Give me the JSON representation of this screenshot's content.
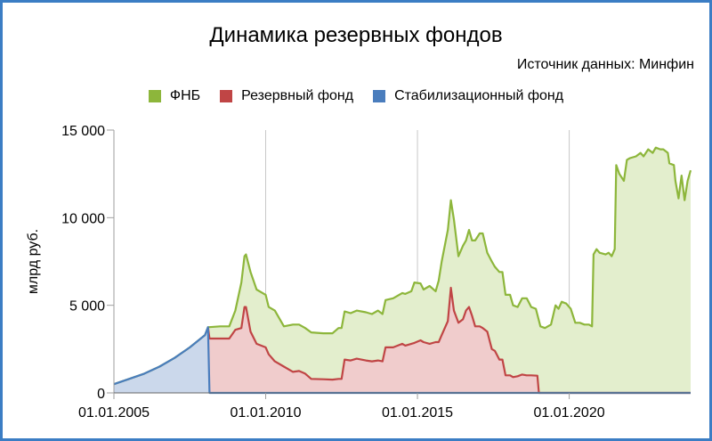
{
  "chart_data": {
    "type": "area",
    "title": "Динамика резервных фондов",
    "subtitle": "Источник данных: Минфин",
    "ylabel": "млрд руб.",
    "xlabel": "",
    "xlim": [
      2005.0,
      2024.0
    ],
    "ylim": [
      0,
      15000
    ],
    "y_ticks": [
      0,
      5000,
      10000,
      15000
    ],
    "y_tick_labels": [
      "0",
      "5 000",
      "10 000",
      "15 000"
    ],
    "x_ticks": [
      2005.0,
      2010.0,
      2015.0,
      2020.0
    ],
    "x_tick_labels": [
      "01.01.2005",
      "01.01.2010",
      "01.01.2015",
      "01.01.2020"
    ],
    "grid": "vertical",
    "legend_position": "top",
    "series": [
      {
        "name": "ФНБ",
        "line_color": "#8db63b",
        "fill_color": "#e3eecd",
        "points": [
          [
            2005.0,
            500
          ],
          [
            2005.5,
            800
          ],
          [
            2006.0,
            1100
          ],
          [
            2006.5,
            1500
          ],
          [
            2007.0,
            2000
          ],
          [
            2007.5,
            2600
          ],
          [
            2008.0,
            3300
          ],
          [
            2008.1,
            3750
          ],
          [
            2008.5,
            3800
          ],
          [
            2008.7,
            3800
          ],
          [
            2008.8,
            3800
          ],
          [
            2009.0,
            4700
          ],
          [
            2009.2,
            6300
          ],
          [
            2009.3,
            7800
          ],
          [
            2009.35,
            7900
          ],
          [
            2009.5,
            6900
          ],
          [
            2009.7,
            5900
          ],
          [
            2010.0,
            5600
          ],
          [
            2010.1,
            4900
          ],
          [
            2010.3,
            4700
          ],
          [
            2010.6,
            3800
          ],
          [
            2010.9,
            3900
          ],
          [
            2011.1,
            3900
          ],
          [
            2011.3,
            3700
          ],
          [
            2011.5,
            3450
          ],
          [
            2011.9,
            3400
          ],
          [
            2012.2,
            3400
          ],
          [
            2012.4,
            3700
          ],
          [
            2012.5,
            3700
          ],
          [
            2012.6,
            4650
          ],
          [
            2012.8,
            4550
          ],
          [
            2013.0,
            4700
          ],
          [
            2013.3,
            4600
          ],
          [
            2013.5,
            4500
          ],
          [
            2013.7,
            4700
          ],
          [
            2013.85,
            4500
          ],
          [
            2013.95,
            5300
          ],
          [
            2014.2,
            5400
          ],
          [
            2014.5,
            5700
          ],
          [
            2014.6,
            5650
          ],
          [
            2014.8,
            5800
          ],
          [
            2014.9,
            6300
          ],
          [
            2015.1,
            6250
          ],
          [
            2015.2,
            5900
          ],
          [
            2015.4,
            6100
          ],
          [
            2015.6,
            5800
          ],
          [
            2015.7,
            6400
          ],
          [
            2015.8,
            7500
          ],
          [
            2016.0,
            9300
          ],
          [
            2016.1,
            11000
          ],
          [
            2016.2,
            9900
          ],
          [
            2016.35,
            7800
          ],
          [
            2016.5,
            8400
          ],
          [
            2016.6,
            8700
          ],
          [
            2016.7,
            9300
          ],
          [
            2016.8,
            8700
          ],
          [
            2016.9,
            8700
          ],
          [
            2017.05,
            9100
          ],
          [
            2017.15,
            9100
          ],
          [
            2017.3,
            8000
          ],
          [
            2017.45,
            7500
          ],
          [
            2017.55,
            7200
          ],
          [
            2017.7,
            6900
          ],
          [
            2017.8,
            6900
          ],
          [
            2017.9,
            5600
          ],
          [
            2018.05,
            5600
          ],
          [
            2018.15,
            5000
          ],
          [
            2018.3,
            4900
          ],
          [
            2018.45,
            5400
          ],
          [
            2018.6,
            5400
          ],
          [
            2018.75,
            4900
          ],
          [
            2018.9,
            4800
          ],
          [
            2019.05,
            3800
          ],
          [
            2019.2,
            3700
          ],
          [
            2019.4,
            3900
          ],
          [
            2019.55,
            5000
          ],
          [
            2019.65,
            4800
          ],
          [
            2019.75,
            5200
          ],
          [
            2019.9,
            5100
          ],
          [
            2020.05,
            4800
          ],
          [
            2020.2,
            4000
          ],
          [
            2020.35,
            4000
          ],
          [
            2020.5,
            3900
          ],
          [
            2020.65,
            3900
          ],
          [
            2020.75,
            3800
          ],
          [
            2020.8,
            7900
          ],
          [
            2020.9,
            8200
          ],
          [
            2021.0,
            8000
          ],
          [
            2021.2,
            7900
          ],
          [
            2021.3,
            8000
          ],
          [
            2021.4,
            7800
          ],
          [
            2021.5,
            8200
          ],
          [
            2021.55,
            13000
          ],
          [
            2021.65,
            12500
          ],
          [
            2021.8,
            12100
          ],
          [
            2021.9,
            13300
          ],
          [
            2022.0,
            13400
          ],
          [
            2022.2,
            13500
          ],
          [
            2022.35,
            13700
          ],
          [
            2022.45,
            13500
          ],
          [
            2022.6,
            13900
          ],
          [
            2022.75,
            13700
          ],
          [
            2022.85,
            14000
          ],
          [
            2023.0,
            13900
          ],
          [
            2023.1,
            13900
          ],
          [
            2023.25,
            13700
          ],
          [
            2023.3,
            13100
          ],
          [
            2023.45,
            13000
          ],
          [
            2023.5,
            12100
          ],
          [
            2023.6,
            11100
          ],
          [
            2023.7,
            12400
          ],
          [
            2023.8,
            11000
          ],
          [
            2023.9,
            12100
          ],
          [
            2024.0,
            12700
          ]
        ]
      },
      {
        "name": "Резервный фонд",
        "line_color": "#c04545",
        "fill_color": "#f0cccc",
        "points": [
          [
            2008.1,
            3750
          ],
          [
            2008.15,
            3100
          ],
          [
            2008.5,
            3100
          ],
          [
            2008.7,
            3100
          ],
          [
            2008.8,
            3100
          ],
          [
            2009.0,
            3600
          ],
          [
            2009.2,
            3700
          ],
          [
            2009.3,
            4900
          ],
          [
            2009.35,
            4900
          ],
          [
            2009.5,
            3500
          ],
          [
            2009.7,
            2800
          ],
          [
            2010.0,
            2600
          ],
          [
            2010.1,
            2200
          ],
          [
            2010.3,
            1800
          ],
          [
            2010.6,
            1500
          ],
          [
            2010.9,
            1200
          ],
          [
            2011.1,
            1250
          ],
          [
            2011.3,
            1100
          ],
          [
            2011.5,
            800
          ],
          [
            2011.9,
            780
          ],
          [
            2012.2,
            760
          ],
          [
            2012.4,
            800
          ],
          [
            2012.5,
            800
          ],
          [
            2012.6,
            1900
          ],
          [
            2012.8,
            1850
          ],
          [
            2013.0,
            1950
          ],
          [
            2013.3,
            1850
          ],
          [
            2013.5,
            1800
          ],
          [
            2013.7,
            1850
          ],
          [
            2013.85,
            1800
          ],
          [
            2013.95,
            2600
          ],
          [
            2014.2,
            2600
          ],
          [
            2014.5,
            2800
          ],
          [
            2014.6,
            2700
          ],
          [
            2014.8,
            2800
          ],
          [
            2014.9,
            2850
          ],
          [
            2015.1,
            3000
          ],
          [
            2015.2,
            2900
          ],
          [
            2015.4,
            2800
          ],
          [
            2015.6,
            2900
          ],
          [
            2015.7,
            2900
          ],
          [
            2015.8,
            3300
          ],
          [
            2016.0,
            4100
          ],
          [
            2016.1,
            6000
          ],
          [
            2016.2,
            4700
          ],
          [
            2016.35,
            4000
          ],
          [
            2016.5,
            4200
          ],
          [
            2016.6,
            4700
          ],
          [
            2016.7,
            4900
          ],
          [
            2016.8,
            4400
          ],
          [
            2016.9,
            3800
          ],
          [
            2017.05,
            3800
          ],
          [
            2017.15,
            3700
          ],
          [
            2017.3,
            3500
          ],
          [
            2017.45,
            2500
          ],
          [
            2017.55,
            2400
          ],
          [
            2017.7,
            1900
          ],
          [
            2017.8,
            1900
          ],
          [
            2017.9,
            1000
          ],
          [
            2018.05,
            1000
          ],
          [
            2018.15,
            900
          ],
          [
            2018.3,
            950
          ],
          [
            2018.45,
            1050
          ],
          [
            2018.6,
            1000
          ],
          [
            2018.75,
            1000
          ],
          [
            2018.95,
            980
          ],
          [
            2019.0,
            0
          ],
          [
            2024.0,
            0
          ]
        ]
      },
      {
        "name": "Стабилизационный фонд",
        "line_color": "#4a7dbd",
        "fill_color": "#cbd8eb",
        "points": [
          [
            2005.0,
            500
          ],
          [
            2005.5,
            800
          ],
          [
            2006.0,
            1100
          ],
          [
            2006.5,
            1500
          ],
          [
            2007.0,
            2000
          ],
          [
            2007.5,
            2600
          ],
          [
            2008.0,
            3300
          ],
          [
            2008.1,
            3750
          ],
          [
            2008.15,
            0
          ],
          [
            2024.0,
            0
          ]
        ]
      }
    ]
  }
}
